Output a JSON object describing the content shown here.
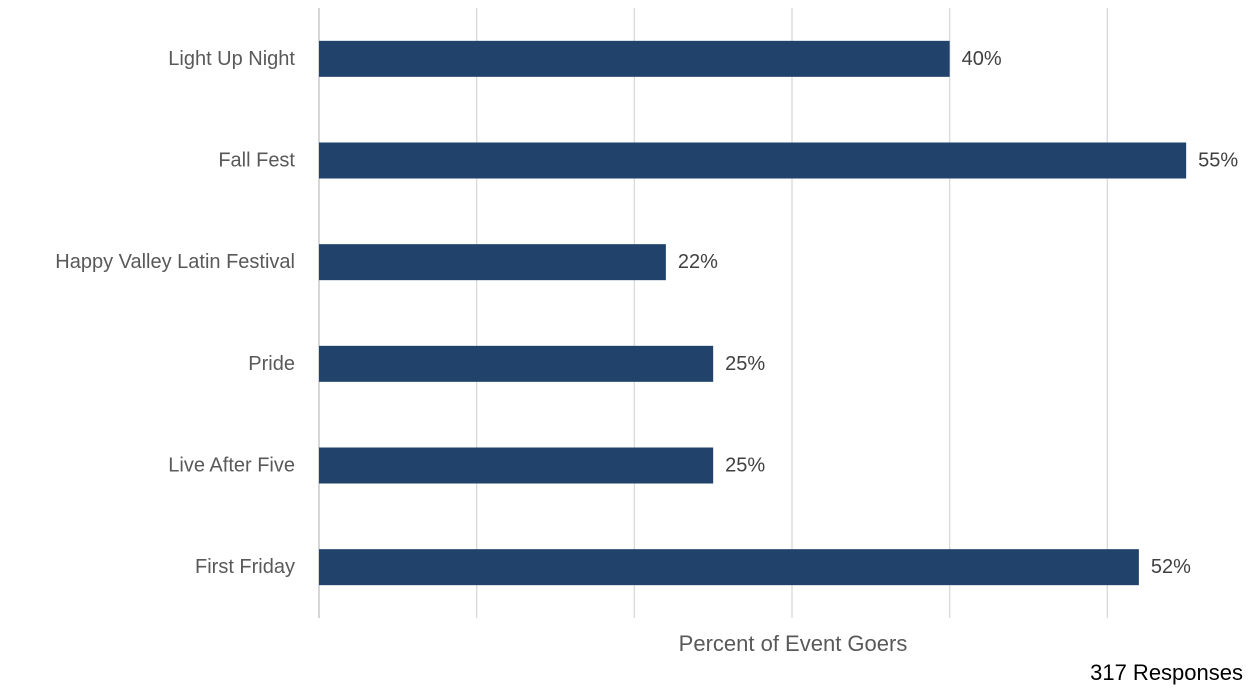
{
  "chart_data": {
    "type": "bar",
    "orientation": "horizontal",
    "categories": [
      "Light Up Night",
      "Fall Fest",
      "Happy Valley Latin Festival",
      "Pride",
      "Live After Five",
      "First Friday"
    ],
    "values": [
      40,
      55,
      22,
      25,
      25,
      52
    ],
    "value_labels": [
      "40%",
      "55%",
      "22%",
      "25%",
      "25%",
      "52%"
    ],
    "xlabel": "Percent of Event Goers",
    "ylabel": "",
    "xlim": [
      0,
      60
    ],
    "grid": true,
    "bar_color": "#21436B",
    "gridline_color": "#D9D9D9"
  },
  "note": "317 Responses"
}
